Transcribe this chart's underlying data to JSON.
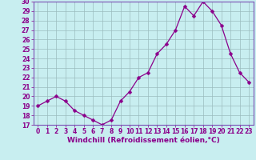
{
  "xlabel": "Windchill (Refroidissement éolien,°C)",
  "x": [
    0,
    1,
    2,
    3,
    4,
    5,
    6,
    7,
    8,
    9,
    10,
    11,
    12,
    13,
    14,
    15,
    16,
    17,
    18,
    19,
    20,
    21,
    22,
    23
  ],
  "y": [
    19.0,
    19.5,
    20.0,
    19.5,
    18.5,
    18.0,
    17.5,
    17.0,
    17.5,
    19.5,
    20.5,
    22.0,
    22.5,
    24.5,
    25.5,
    27.0,
    29.5,
    28.5,
    30.0,
    29.0,
    27.5,
    24.5,
    22.5,
    21.5
  ],
  "line_color": "#8B008B",
  "marker": "D",
  "marker_size": 2.5,
  "bg_color": "#c8eef0",
  "grid_color": "#9bbcbe",
  "ylim": [
    17,
    30
  ],
  "yticks": [
    17,
    18,
    19,
    20,
    21,
    22,
    23,
    24,
    25,
    26,
    27,
    28,
    29,
    30
  ],
  "xticks": [
    0,
    1,
    2,
    3,
    4,
    5,
    6,
    7,
    8,
    9,
    10,
    11,
    12,
    13,
    14,
    15,
    16,
    17,
    18,
    19,
    20,
    21,
    22,
    23
  ],
  "tick_fontsize": 5.5,
  "xlabel_fontsize": 6.5,
  "spine_color": "#7B4FB5",
  "linewidth": 0.9
}
